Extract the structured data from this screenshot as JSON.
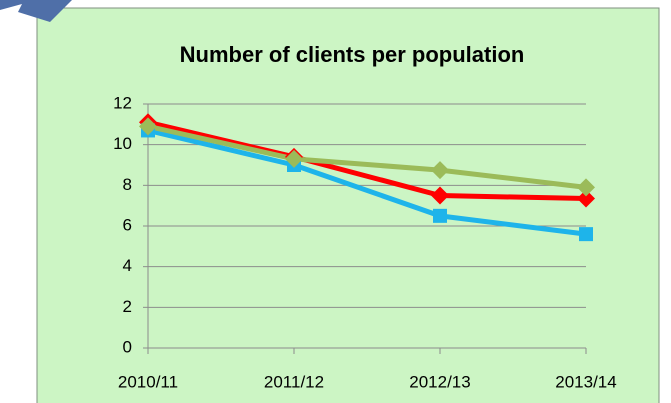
{
  "chart_data": {
    "type": "line",
    "title": "Number of clients per population",
    "categories": [
      "2010/11",
      "2011/12",
      "2012/13",
      "2013/14"
    ],
    "series": [
      {
        "color": "#ff0000",
        "marker": "diamond",
        "values": [
          11.1,
          9.4,
          7.5,
          7.35
        ]
      },
      {
        "color": "#1eb4ea",
        "marker": "square",
        "values": [
          10.7,
          9.0,
          6.5,
          5.6
        ]
      },
      {
        "color": "#9bbb59",
        "marker": "diamond",
        "values": [
          10.9,
          9.3,
          8.75,
          7.9
        ]
      }
    ],
    "ylim": [
      0,
      12
    ],
    "yticks": [
      0,
      2,
      4,
      6,
      8,
      10,
      12
    ],
    "grid": true
  }
}
